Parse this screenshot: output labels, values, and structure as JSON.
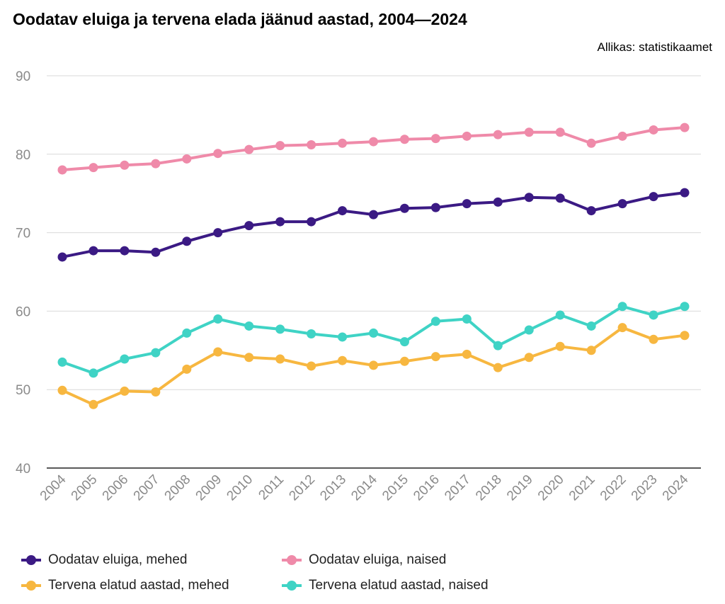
{
  "chart_data": {
    "type": "line",
    "title": "Oodatav eluiga ja tervena elada jäänud aastad, 2004—2024",
    "source": "Allikas: statistikaamet",
    "xlabel": "",
    "ylabel": "",
    "x": [
      "2004",
      "2005",
      "2006",
      "2007",
      "2008",
      "2009",
      "2010",
      "2011",
      "2012",
      "2013",
      "2014",
      "2015",
      "2016",
      "2017",
      "2018",
      "2019",
      "2020",
      "2021",
      "2022",
      "2023",
      "2024"
    ],
    "ylim": [
      40,
      90
    ],
    "yticks": [
      40,
      50,
      60,
      70,
      80,
      90
    ],
    "grid": true,
    "legend_position": "bottom",
    "series": [
      {
        "name": "Oodatav eluiga, mehed",
        "color": "#3b1a84",
        "values": [
          66.9,
          67.7,
          67.7,
          67.5,
          68.9,
          70.0,
          70.9,
          71.4,
          71.4,
          72.8,
          72.3,
          73.1,
          73.2,
          73.7,
          73.9,
          74.5,
          74.4,
          72.8,
          73.7,
          74.6,
          75.1
        ]
      },
      {
        "name": "Oodatav eluiga, naised",
        "color": "#ef8aa9",
        "values": [
          78.0,
          78.3,
          78.6,
          78.8,
          79.4,
          80.1,
          80.6,
          81.1,
          81.2,
          81.4,
          81.6,
          81.9,
          82.0,
          82.3,
          82.5,
          82.8,
          82.8,
          81.4,
          82.3,
          83.1,
          83.4
        ]
      },
      {
        "name": "Tervena elatud aastad, mehed",
        "color": "#f7b740",
        "values": [
          49.9,
          48.1,
          49.8,
          49.7,
          52.6,
          54.8,
          54.1,
          53.9,
          53.0,
          53.7,
          53.1,
          53.6,
          54.2,
          54.5,
          52.8,
          54.1,
          55.5,
          55.0,
          57.9,
          56.4,
          56.9
        ]
      },
      {
        "name": "Tervena elatud aastad, naised",
        "color": "#3fd3c5",
        "values": [
          53.5,
          52.1,
          53.9,
          54.7,
          57.2,
          59.0,
          58.1,
          57.7,
          57.1,
          56.7,
          57.2,
          56.1,
          58.7,
          59.0,
          55.6,
          57.6,
          59.5,
          58.1,
          60.6,
          59.5,
          60.6
        ]
      }
    ]
  }
}
